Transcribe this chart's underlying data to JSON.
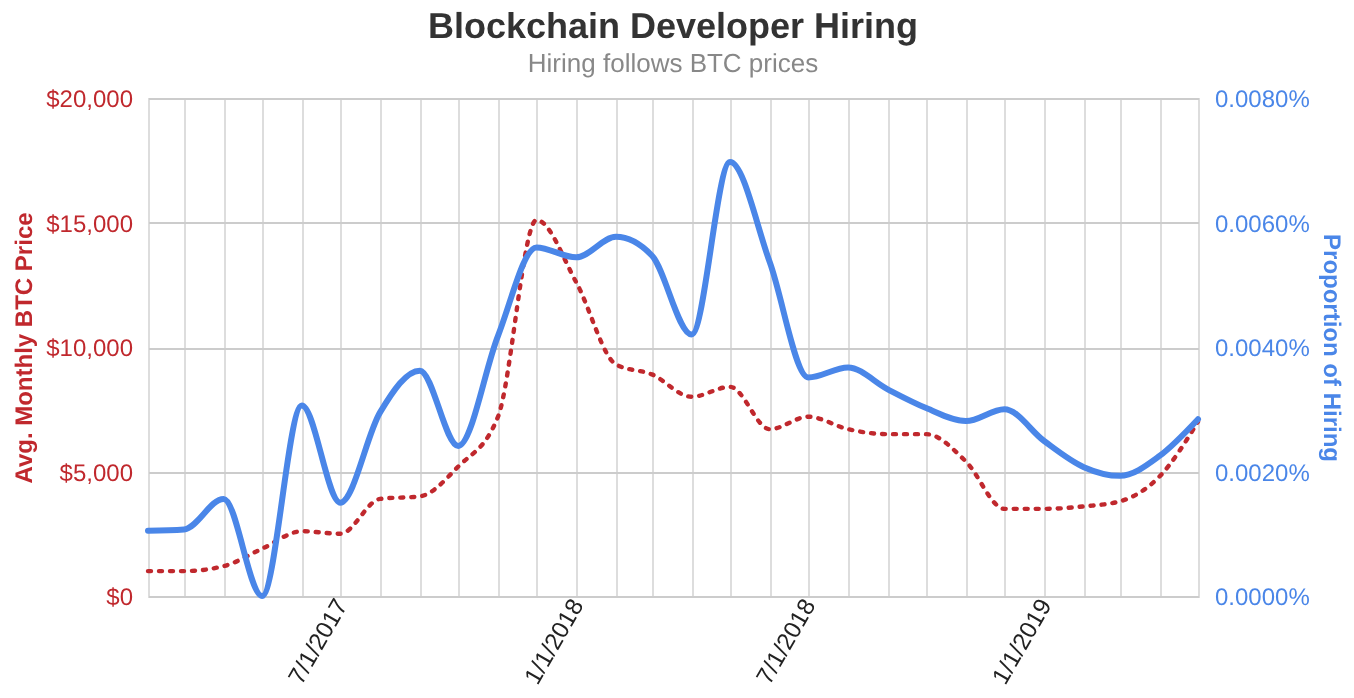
{
  "chart_data": {
    "type": "line",
    "title": "Blockchain Developer Hiring",
    "subtitle": "Hiring follows BTC prices",
    "ylabel": "Avg. Monthly BTC Price",
    "y2label": "Proportion of Hiring",
    "x": [
      "2017-02",
      "2017-03",
      "2017-04",
      "2017-05",
      "2017-06",
      "2017-07",
      "2017-08",
      "2017-09",
      "2017-10",
      "2017-11",
      "2017-12",
      "2018-01",
      "2018-02",
      "2018-03",
      "2018-04",
      "2018-05",
      "2018-06",
      "2018-07",
      "2018-08",
      "2018-09",
      "2018-10",
      "2018-11",
      "2018-12",
      "2019-01",
      "2019-02",
      "2019-03",
      "2019-04",
      "2019-05"
    ],
    "series": [
      {
        "color": "#c0282d",
        "line_style": "dotted",
        "values": [
          1000,
          1000,
          1200,
          1900,
          2600,
          2500,
          3900,
          4000,
          5200,
          7200,
          15100,
          12600,
          9300,
          8900,
          8000,
          8400,
          6700,
          7200,
          6700,
          6500,
          6500,
          5400,
          3500,
          3500,
          3600,
          3800,
          4800,
          7000
        ]
      },
      {
        "color": "#4a86e8",
        "line_style": "solid",
        "axis": "y2",
        "values": [
          0.00105,
          0.00107,
          0.00156,
          0.0,
          0.00306,
          0.0015,
          0.00295,
          0.00362,
          0.00241,
          0.00418,
          0.0056,
          0.00544,
          0.00577,
          0.00547,
          0.0042,
          0.00697,
          0.00536,
          0.00351,
          0.00367,
          0.00332,
          0.00302,
          0.00281,
          0.003,
          0.00249,
          0.00207,
          0.00193,
          0.00225,
          0.00284
        ]
      }
    ],
    "xlim": [
      "2017-02",
      "2019-05"
    ],
    "xticks": [
      {
        "value": "2017-02",
        "label": null
      },
      {
        "value": "2017-03",
        "label": null
      },
      {
        "value": "2017-04",
        "label": null
      },
      {
        "value": "2017-05",
        "label": null
      },
      {
        "value": "2017-06",
        "label": null
      },
      {
        "value": "2017-07",
        "label": "7/1/2017"
      },
      {
        "value": "2017-08",
        "label": null
      },
      {
        "value": "2017-09",
        "label": null
      },
      {
        "value": "2017-10",
        "label": null
      },
      {
        "value": "2017-11",
        "label": null
      },
      {
        "value": "2017-12",
        "label": null
      },
      {
        "value": "2018-01",
        "label": "1/1/2018"
      },
      {
        "value": "2018-02",
        "label": null
      },
      {
        "value": "2018-03",
        "label": null
      },
      {
        "value": "2018-04",
        "label": null
      },
      {
        "value": "2018-05",
        "label": null
      },
      {
        "value": "2018-06",
        "label": null
      },
      {
        "value": "2018-07",
        "label": "7/1/2018"
      },
      {
        "value": "2018-08",
        "label": null
      },
      {
        "value": "2018-09",
        "label": null
      },
      {
        "value": "2018-10",
        "label": null
      },
      {
        "value": "2018-11",
        "label": null
      },
      {
        "value": "2018-12",
        "label": null
      },
      {
        "value": "2019-01",
        "label": "1/1/2019"
      },
      {
        "value": "2019-02",
        "label": null
      },
      {
        "value": "2019-03",
        "label": null
      },
      {
        "value": "2019-04",
        "label": null
      },
      {
        "value": "2019-05",
        "label": null
      }
    ],
    "ylim": [
      0,
      20000
    ],
    "yticks": [
      {
        "value": 0,
        "label": "$0"
      },
      {
        "value": 5000,
        "label": "$5,000"
      },
      {
        "value": 10000,
        "label": "$10,000"
      },
      {
        "value": 15000,
        "label": "$15,000"
      },
      {
        "value": 20000,
        "label": "$20,000"
      }
    ],
    "y2lim": [
      0,
      0.008
    ],
    "y2ticks": [
      {
        "value": 0,
        "label": "0.0000%"
      },
      {
        "value": 0.002,
        "label": "0.0020%"
      },
      {
        "value": 0.004,
        "label": "0.0040%"
      },
      {
        "value": 0.006,
        "label": "0.0060%"
      },
      {
        "value": 0.008,
        "label": "0.0080%"
      }
    ],
    "grid": true,
    "marker": "none"
  }
}
